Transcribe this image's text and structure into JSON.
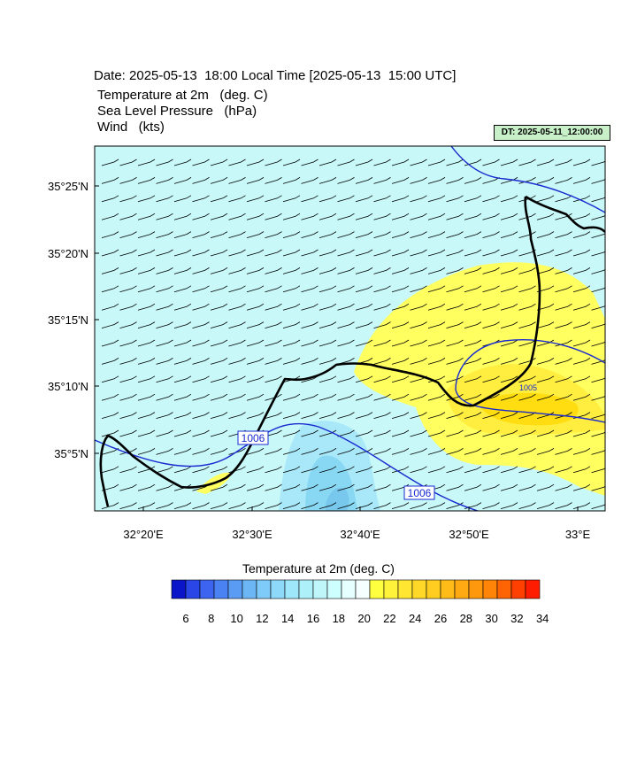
{
  "header": {
    "date_line": "Date: 2025-05-13  18:00 Local Time [2025-05-13  15:00 UTC]",
    "fields": [
      "Temperature at 2m   (deg. C)",
      "Sea Level Pressure   (hPa)",
      "Wind   (kts)"
    ],
    "dt_label": "DT: 2025-05-11_12:00:00"
  },
  "map": {
    "lat_labels": [
      "35°25'N",
      "35°20'N",
      "35°15'N",
      "35°10'N",
      "35°5'N"
    ],
    "lon_labels": [
      "32°20'E",
      "32°30'E",
      "32°40'E",
      "32°50'E",
      "33°E"
    ],
    "contour_labels": [
      "1006",
      "1006",
      "1005"
    ],
    "colors": {
      "ocean_bg": "#c8f8f8",
      "warm_fill_light": "#ffff60",
      "warm_fill_mid": "#ffee40",
      "warm_fill_dark": "#ffdd10",
      "cool_fill_light": "#a8e8f8",
      "cool_fill_mid": "#88d8f4",
      "cool_fill_dark": "#78c8ee",
      "isobar": "#1a2ad0",
      "coastline": "#000000",
      "wind_barb": "#000000"
    }
  },
  "colorbar": {
    "title": "Temperature at 2m  (deg. C)",
    "tick_labels": [
      "6",
      "8",
      "10",
      "12",
      "14",
      "16",
      "18",
      "20",
      "22",
      "24",
      "26",
      "28",
      "30",
      "32",
      "34"
    ],
    "colors": [
      "#0a14c8",
      "#2a46e6",
      "#3c64f0",
      "#4a82f4",
      "#5a9cf4",
      "#6cb6f6",
      "#7ecaf8",
      "#8ed8fa",
      "#9ee6fa",
      "#aef0fa",
      "#bef6fa",
      "#ceffff",
      "#e6ffff",
      "#f6ffff",
      "#ffff40",
      "#fff23a",
      "#ffe630",
      "#ffd828",
      "#ffcc20",
      "#ffbc18",
      "#ffaa12",
      "#ff980c",
      "#ff8408",
      "#ff6404",
      "#ff4000",
      "#ff1c00"
    ]
  }
}
